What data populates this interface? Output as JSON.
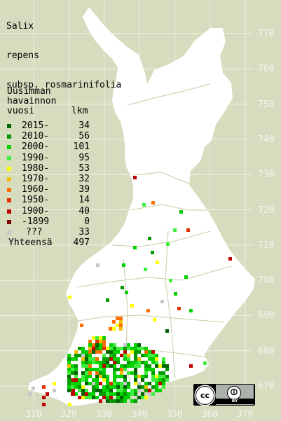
{
  "title": {
    "line1": "Salix",
    "line2": "repens",
    "line3": "subsp. rosmarinifolia"
  },
  "legend": {
    "header_line1": "Uusimman",
    "header_line2": "havainnon",
    "header_col1": "vuosi",
    "header_col2": "lkm",
    "rows": [
      {
        "label": "2015-",
        "count": "34",
        "color": "#006400"
      },
      {
        "label": "2010-",
        "count": "56",
        "color": "#009a00"
      },
      {
        "label": "2000-",
        "count": "101",
        "color": "#00d000"
      },
      {
        "label": "1990-",
        "count": "95",
        "color": "#40ee40"
      },
      {
        "label": "1980-",
        "count": "53",
        "color": "#ffff00"
      },
      {
        "label": "1970-",
        "count": "32",
        "color": "#f0c000"
      },
      {
        "label": "1960-",
        "count": "39",
        "color": "#ff7000"
      },
      {
        "label": "1950-",
        "count": "14",
        "color": "#e03000"
      },
      {
        "label": "1900-",
        "count": "40",
        "color": "#c00000"
      },
      {
        "label": "-1899",
        "count": "0",
        "color": "#800000"
      },
      {
        "label": "???",
        "count": "33",
        "color": "#c8c8c8"
      }
    ],
    "total_label": "Yhteensä",
    "total_count": "497"
  },
  "axis_y_labels": [
    "770",
    "760",
    "750",
    "740",
    "730",
    "720",
    "710",
    "700",
    "690",
    "680",
    "670"
  ],
  "axis_x_labels": [
    "310",
    "320",
    "330",
    "340",
    "350",
    "360",
    "370"
  ],
  "license": {
    "cc": "cc",
    "by": "BY",
    "attribution_icon": "person-icon"
  },
  "map_colors": {
    "background": "#d6dcbe",
    "land": "#ffffff",
    "grid": "#f5f5f0",
    "borders": "#c8cca8"
  }
}
